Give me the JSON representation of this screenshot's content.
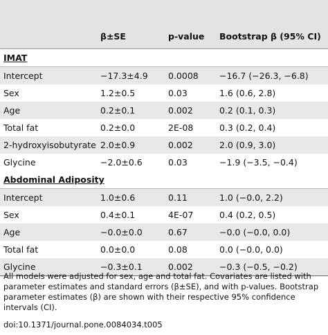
{
  "table": {
    "columns": [
      "β±SE",
      "p-value",
      "Bootstrap β (95% CI)"
    ],
    "sections": [
      {
        "title": "IMAT",
        "rows": [
          [
            "Intercept",
            "−17.3±4.9",
            "0.0008",
            "−16.7 (−26.3, −6.8)"
          ],
          [
            "Sex",
            "1.2±0.5",
            "0.03",
            "1.6 (0.6, 2.8)"
          ],
          [
            "Age",
            "0.2±0.1",
            "0.002",
            "0.2 (0.1, 0.3)"
          ],
          [
            "Total fat",
            "0.2±0.0",
            "2E-08",
            "0.3 (0.2, 0.4)"
          ],
          [
            "2-hydroxyisobutyrate",
            "2.0±0.9",
            "0.002",
            "2.0 (0.9, 3.0)"
          ],
          [
            "Glycine",
            "−2.0±0.6",
            "0.03",
            "−1.9 (−3.5, −0.4)"
          ]
        ]
      },
      {
        "title": "Abdominal Adiposity",
        "rows": [
          [
            "Intercept",
            "1.0±0.6",
            "0.11",
            "1.0 (−0.0, 2.2)"
          ],
          [
            "Sex",
            "0.4±0.1",
            "4E-07",
            "0.4 (0.2, 0.5)"
          ],
          [
            "Age",
            "−0.0±0.0",
            "0.67",
            "−0.0 (−0.0, 0.0)"
          ],
          [
            "Total fat",
            "0.0±0.0",
            "0.08",
            "0.0 (−0.0, 0.0)"
          ],
          [
            "Glycine",
            "−0.3±0.1",
            "0.002",
            "−0.3 (−0.5, −0.2)"
          ]
        ]
      }
    ]
  },
  "footnote": "All models were adjusted for sex, age and total fat. Covariates are listed with parameter estimates and standard errors (β±SE), and with p-values. Bootstrap parameter estimates (β) are shown with their respective 95% confidence intervals (CI).",
  "doi": "doi:10.1371/journal.pone.0084034.t005"
}
